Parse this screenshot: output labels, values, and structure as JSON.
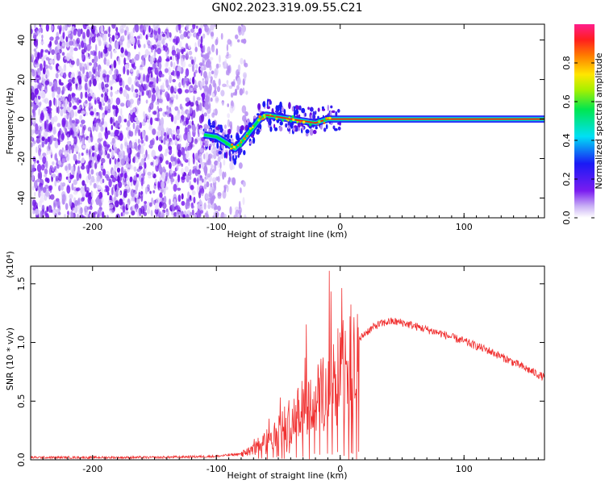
{
  "title": "GN02.2023.319.09.55.C21",
  "chart_data": [
    {
      "type": "heatmap",
      "xlabel": "Height of straight line (km)",
      "ylabel": "Frequency (Hz)",
      "xlim": [
        -250,
        165
      ],
      "ylim": [
        -50,
        48
      ],
      "xticks": [
        -200,
        -100,
        0,
        100
      ],
      "yticks": [
        -40,
        -20,
        0,
        20,
        40
      ],
      "colorbar": {
        "label": "Normalized spectral amplitude",
        "range": [
          0,
          1
        ],
        "ticks": [
          0.0,
          0.2,
          0.4,
          0.6,
          0.8
        ],
        "colormap": "rainbow (purple-blue-cyan-green-yellow-red-magenta)"
      },
      "features": {
        "noise_region_x": [
          -250,
          -100
        ],
        "signal_track": [
          {
            "x": -110,
            "y": -8
          },
          {
            "x": -100,
            "y": -9
          },
          {
            "x": -92,
            "y": -12
          },
          {
            "x": -85,
            "y": -15
          },
          {
            "x": -80,
            "y": -12
          },
          {
            "x": -75,
            "y": -8
          },
          {
            "x": -70,
            "y": -4
          },
          {
            "x": -65,
            "y": 0
          },
          {
            "x": -60,
            "y": 2
          },
          {
            "x": -50,
            "y": 1
          },
          {
            "x": -40,
            "y": 0
          },
          {
            "x": -30,
            "y": -1
          },
          {
            "x": -20,
            "y": -2
          },
          {
            "x": -10,
            "y": 0
          },
          {
            "x": 0,
            "y": 0
          },
          {
            "x": 165,
            "y": 0
          }
        ]
      }
    },
    {
      "type": "line",
      "xlabel": "Height of straight line (km)",
      "ylabel": "SNR (10 * v/v)",
      "y_multiplier": "(x10⁴)",
      "xlim": [
        -250,
        165
      ],
      "ylim": [
        0,
        1.65
      ],
      "xticks": [
        -200,
        -100,
        0,
        100
      ],
      "yticks": [
        0.0,
        0.5,
        1.0,
        1.5
      ],
      "line_color": "#f03030",
      "series": [
        {
          "x": [
            -250,
            -200,
            -150,
            -100,
            -80,
            -70,
            -60,
            -50,
            -40,
            -30,
            -20,
            -10,
            0,
            10,
            20,
            30,
            40,
            50,
            60,
            80,
            100,
            120,
            140,
            165
          ],
          "y": [
            0.02,
            0.02,
            0.02,
            0.03,
            0.05,
            0.1,
            0.18,
            0.28,
            0.38,
            0.48,
            0.55,
            0.68,
            0.8,
            0.95,
            1.08,
            1.15,
            1.18,
            1.17,
            1.14,
            1.08,
            1.01,
            0.93,
            0.83,
            0.7
          ]
        }
      ]
    }
  ]
}
